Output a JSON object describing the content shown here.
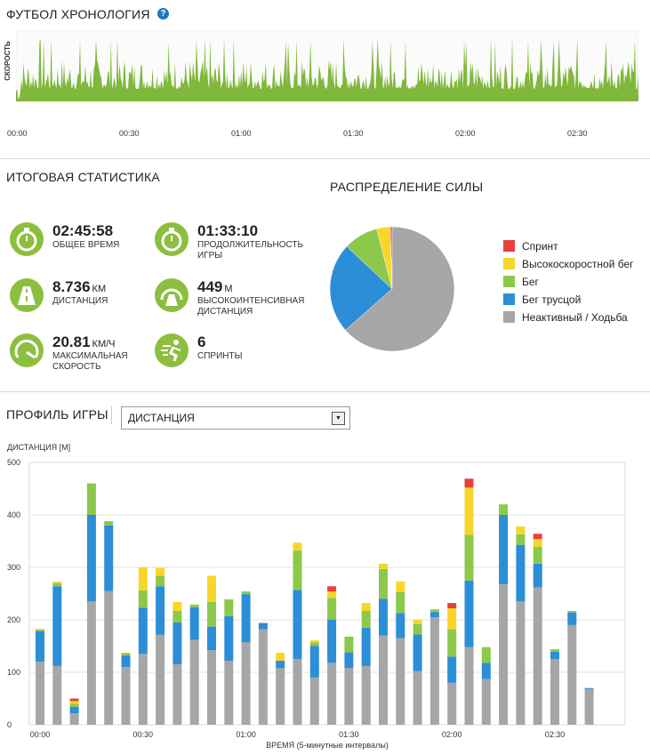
{
  "timeline": {
    "title": "ФУТБОЛ ХРОНОЛОГИЯ",
    "help": "?",
    "ylabel": "СКОРОСТЬ",
    "ticks": [
      "00:00",
      "00:30",
      "01:00",
      "01:30",
      "02:00",
      "02:30"
    ]
  },
  "summary": {
    "title": "ИТОГОВАЯ СТАТИСТИКА",
    "stats": [
      {
        "value": "02:45:58",
        "unit": "",
        "label": "ОБЩЕЕ ВРЕМЯ",
        "icon": "stopwatch-icon"
      },
      {
        "value": "01:33:10",
        "unit": "",
        "label": "ПРОДОЛЖИТЕЛЬНОСТЬ ИГРЫ",
        "icon": "stopwatch-icon"
      },
      {
        "value": "8.736",
        "unit": "КМ",
        "label": "ДИСТАНЦИЯ",
        "icon": "road-icon"
      },
      {
        "value": "449",
        "unit": "М",
        "label": "ВЫСОКОИНТЕНСИВНАЯ ДИСТАНЦИЯ",
        "icon": "gauge-road-icon"
      },
      {
        "value": "20.81",
        "unit": "КМ/Ч",
        "label": "МАКСИМАЛЬНАЯ СКОРОСТЬ",
        "icon": "speedometer-icon"
      },
      {
        "value": "6",
        "unit": "",
        "label": "СПРИНТЫ",
        "icon": "sprinter-icon"
      }
    ]
  },
  "power": {
    "title": "РАСПРЕДЕЛЕНИЕ СИЛЫ",
    "legend": [
      {
        "label": "Спринт",
        "color": "#e8413b"
      },
      {
        "label": "Высокоскоростной бег",
        "color": "#f7d629"
      },
      {
        "label": "Бег",
        "color": "#8cc84b"
      },
      {
        "label": "Бег трусцой",
        "color": "#2c8ed6"
      },
      {
        "label": "Неактивный / Ходьба",
        "color": "#a6a6a6"
      }
    ],
    "slices": [
      0.5,
      3.5,
      9.0,
      23.5,
      63.5
    ]
  },
  "profile": {
    "title": "ПРОФИЛЬ ИГРЫ",
    "select_value": "ДИСТАНЦИЯ"
  },
  "chart_data": {
    "type": "bar",
    "stacked": true,
    "ylabel": "ДИСТАНЦИЯ [М]",
    "xlabel": "ВРЕМЯ (5-минутные интервалы)",
    "ylim": [
      0,
      500
    ],
    "yticks": [
      0,
      100,
      200,
      300,
      400,
      500
    ],
    "xticks": [
      "00:00",
      "00:30",
      "01:00",
      "01:30",
      "02:00",
      "02:30"
    ],
    "series_colors": [
      "#a6a6a6",
      "#2c8ed6",
      "#8cc84b",
      "#f7d629",
      "#e8413b"
    ],
    "series": [
      {
        "name": "Неактивный / Ходьба",
        "values": [
          120,
          112,
          22,
          235,
          255,
          110,
          135,
          172,
          115,
          162,
          142,
          122,
          157,
          182,
          108,
          125,
          90,
          118,
          108,
          112,
          170,
          165,
          102,
          205,
          80,
          148,
          87,
          268,
          235,
          262,
          125,
          190,
          68
        ]
      },
      {
        "name": "Бег трусцой",
        "values": [
          58,
          152,
          12,
          165,
          125,
          22,
          88,
          92,
          80,
          62,
          45,
          85,
          92,
          12,
          14,
          132,
          60,
          82,
          30,
          73,
          70,
          48,
          70,
          10,
          50,
          127,
          31,
          132,
          108,
          45,
          14,
          24,
          2
        ]
      },
      {
        "name": "Бег",
        "values": [
          4,
          6,
          6,
          60,
          8,
          5,
          33,
          20,
          22,
          5,
          47,
          32,
          5,
          0,
          0,
          75,
          7,
          42,
          30,
          32,
          57,
          40,
          20,
          5,
          52,
          87,
          30,
          20,
          20,
          32,
          5,
          3,
          0
        ]
      },
      {
        "name": "Высокоскоростной бег",
        "values": [
          0,
          3,
          5,
          0,
          0,
          0,
          44,
          15,
          17,
          0,
          50,
          0,
          0,
          0,
          15,
          15,
          4,
          12,
          0,
          15,
          10,
          20,
          8,
          0,
          40,
          90,
          0,
          0,
          15,
          15,
          0,
          0,
          0
        ]
      },
      {
        "name": "Спринт",
        "values": [
          0,
          0,
          5,
          0,
          0,
          0,
          0,
          0,
          0,
          0,
          0,
          0,
          0,
          0,
          0,
          0,
          0,
          10,
          0,
          0,
          0,
          0,
          0,
          0,
          10,
          17,
          0,
          0,
          0,
          10,
          0,
          0,
          0
        ]
      }
    ]
  }
}
